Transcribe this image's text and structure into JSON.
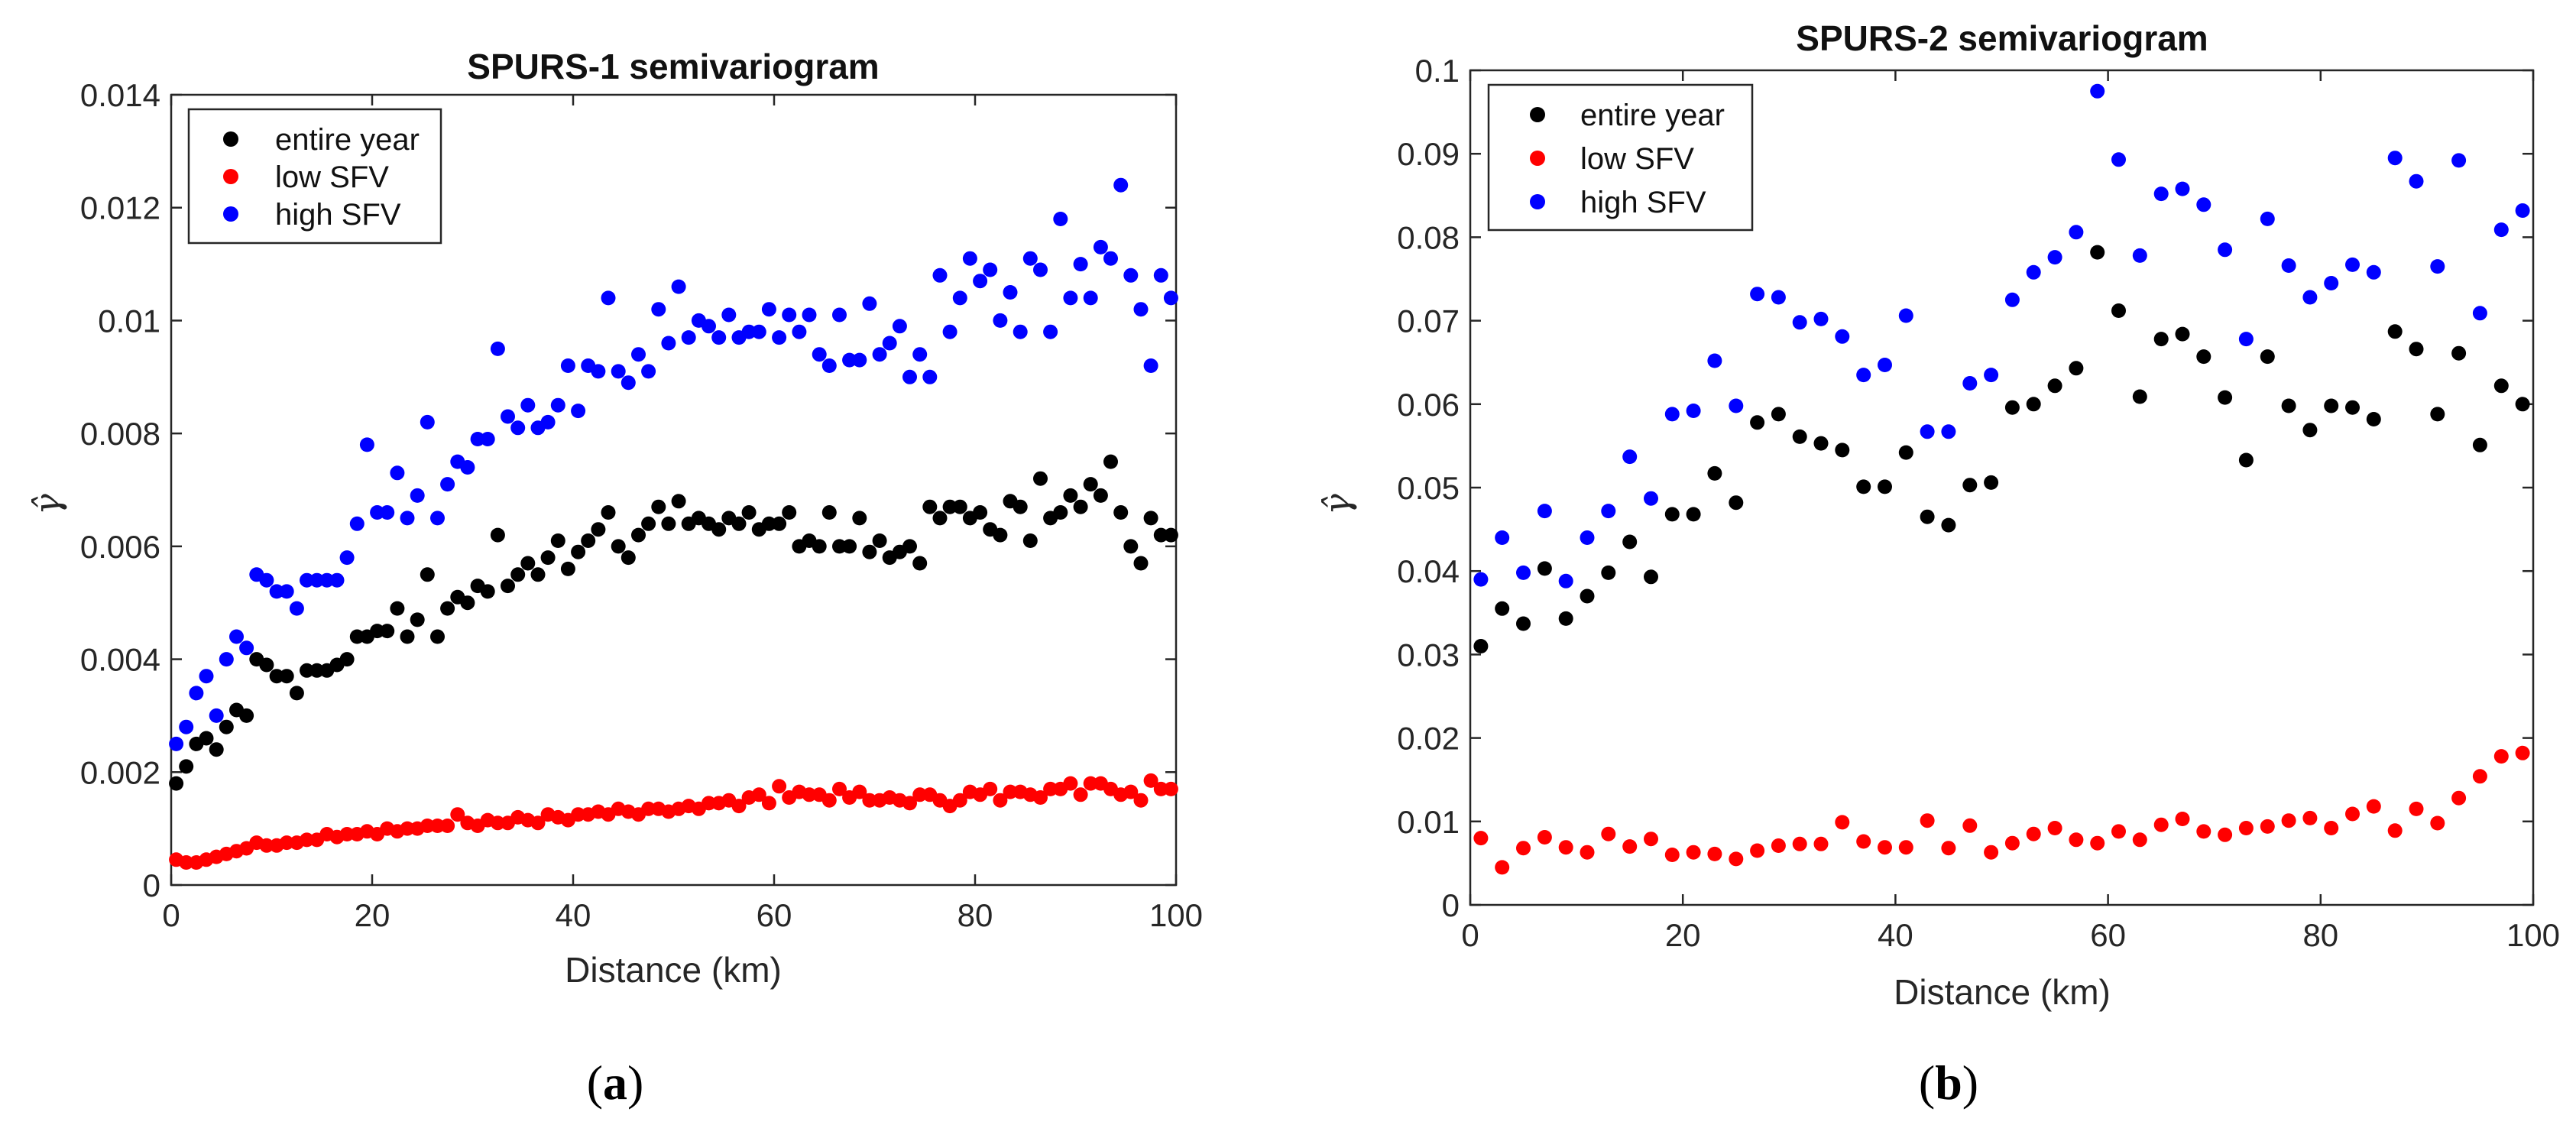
{
  "chart_data": [
    {
      "type": "scatter",
      "title": "SPURS-1 semivariogram",
      "xlabel": "Distance (km)",
      "ylabel": "γ̂",
      "xlim": [
        0,
        100
      ],
      "ylim": [
        0,
        0.014
      ],
      "xticks": [
        0,
        20,
        40,
        60,
        80,
        100
      ],
      "yticks": [
        0,
        0.002,
        0.004,
        0.006,
        0.008,
        0.01,
        0.012,
        0.014
      ],
      "ytick_labels": [
        "0",
        "0.002",
        "0.004",
        "0.006",
        "0.008",
        "0.01",
        "0.012",
        "0.014"
      ],
      "legend_position": "top-left",
      "panel_label": "a",
      "series": [
        {
          "name": "entire year",
          "color": "#000000",
          "x": [
            0.5,
            1.5,
            2.5,
            3.5,
            4.5,
            5.5,
            6.5,
            7.5,
            8.5,
            9.5,
            10.5,
            11.5,
            12.5,
            13.5,
            14.5,
            15.5,
            16.5,
            17.5,
            18.5,
            19.5,
            20.5,
            21.5,
            22.5,
            23.5,
            24.5,
            25.5,
            26.5,
            27.5,
            28.5,
            29.5,
            30.5,
            31.5,
            32.5,
            33.5,
            34.5,
            35.5,
            36.5,
            37.5,
            38.5,
            39.5,
            40.5,
            41.5,
            42.5,
            43.5,
            44.5,
            45.5,
            46.5,
            47.5,
            48.5,
            49.5,
            50.5,
            51.5,
            52.5,
            53.5,
            54.5,
            55.5,
            56.5,
            57.5,
            58.5,
            59.5,
            60.5,
            61.5,
            62.5,
            63.5,
            64.5,
            65.5,
            66.5,
            67.5,
            68.5,
            69.5,
            70.5,
            71.5,
            72.5,
            73.5,
            74.5,
            75.5,
            76.5,
            77.5,
            78.5,
            79.5,
            80.5,
            81.5,
            82.5,
            83.5,
            84.5,
            85.5,
            86.5,
            87.5,
            88.5,
            89.5,
            90.5,
            91.5,
            92.5,
            93.5,
            94.5,
            95.5,
            96.5,
            97.5,
            98.5,
            99.5
          ],
          "y": [
            0.0018,
            0.0021,
            0.0025,
            0.0026,
            0.0024,
            0.0028,
            0.0031,
            0.003,
            0.004,
            0.0039,
            0.0037,
            0.0037,
            0.0034,
            0.0038,
            0.0038,
            0.0038,
            0.0039,
            0.004,
            0.0044,
            0.0044,
            0.0045,
            0.0045,
            0.0049,
            0.0044,
            0.0047,
            0.0055,
            0.0044,
            0.0049,
            0.0051,
            0.005,
            0.0053,
            0.0052,
            0.0062,
            0.0053,
            0.0055,
            0.0057,
            0.0055,
            0.0058,
            0.0061,
            0.0056,
            0.0059,
            0.0061,
            0.0063,
            0.0066,
            0.006,
            0.0058,
            0.0062,
            0.0064,
            0.0067,
            0.0064,
            0.0068,
            0.0064,
            0.0065,
            0.0064,
            0.0063,
            0.0065,
            0.0064,
            0.0066,
            0.0063,
            0.0064,
            0.0064,
            0.0066,
            0.006,
            0.0061,
            0.006,
            0.0066,
            0.006,
            0.006,
            0.0065,
            0.0059,
            0.0061,
            0.0058,
            0.0059,
            0.006,
            0.0057,
            0.0067,
            0.0065,
            0.0067,
            0.0067,
            0.0065,
            0.0066,
            0.0063,
            0.0062,
            0.0068,
            0.0067,
            0.0061,
            0.0072,
            0.0065,
            0.0066,
            0.0069,
            0.0067,
            0.0071,
            0.0069,
            0.0075,
            0.0066,
            0.006,
            0.0057,
            0.0065,
            0.0062,
            0.0062
          ]
        },
        {
          "name": "low SFV",
          "color": "#ff0000",
          "x": [
            0.5,
            1.5,
            2.5,
            3.5,
            4.5,
            5.5,
            6.5,
            7.5,
            8.5,
            9.5,
            10.5,
            11.5,
            12.5,
            13.5,
            14.5,
            15.5,
            16.5,
            17.5,
            18.5,
            19.5,
            20.5,
            21.5,
            22.5,
            23.5,
            24.5,
            25.5,
            26.5,
            27.5,
            28.5,
            29.5,
            30.5,
            31.5,
            32.5,
            33.5,
            34.5,
            35.5,
            36.5,
            37.5,
            38.5,
            39.5,
            40.5,
            41.5,
            42.5,
            43.5,
            44.5,
            45.5,
            46.5,
            47.5,
            48.5,
            49.5,
            50.5,
            51.5,
            52.5,
            53.5,
            54.5,
            55.5,
            56.5,
            57.5,
            58.5,
            59.5,
            60.5,
            61.5,
            62.5,
            63.5,
            64.5,
            65.5,
            66.5,
            67.5,
            68.5,
            69.5,
            70.5,
            71.5,
            72.5,
            73.5,
            74.5,
            75.5,
            76.5,
            77.5,
            78.5,
            79.5,
            80.5,
            81.5,
            82.5,
            83.5,
            84.5,
            85.5,
            86.5,
            87.5,
            88.5,
            89.5,
            90.5,
            91.5,
            92.5,
            93.5,
            94.5,
            95.5,
            96.5,
            97.5,
            98.5,
            99.5
          ],
          "y": [
            0.00045,
            0.0004,
            0.0004,
            0.00045,
            0.0005,
            0.00055,
            0.0006,
            0.00065,
            0.00075,
            0.0007,
            0.0007,
            0.00075,
            0.00075,
            0.0008,
            0.0008,
            0.0009,
            0.00085,
            0.0009,
            0.0009,
            0.00095,
            0.0009,
            0.001,
            0.00095,
            0.001,
            0.001,
            0.00105,
            0.00105,
            0.00105,
            0.00125,
            0.0011,
            0.00105,
            0.00115,
            0.0011,
            0.0011,
            0.0012,
            0.00115,
            0.0011,
            0.00125,
            0.0012,
            0.00115,
            0.00125,
            0.00125,
            0.0013,
            0.00125,
            0.00135,
            0.0013,
            0.00125,
            0.00135,
            0.00135,
            0.0013,
            0.00135,
            0.0014,
            0.00135,
            0.00145,
            0.00145,
            0.0015,
            0.0014,
            0.00155,
            0.0016,
            0.00145,
            0.00175,
            0.00155,
            0.00165,
            0.0016,
            0.0016,
            0.0015,
            0.0017,
            0.00155,
            0.00165,
            0.0015,
            0.0015,
            0.00155,
            0.0015,
            0.00145,
            0.0016,
            0.0016,
            0.0015,
            0.0014,
            0.0015,
            0.00165,
            0.0016,
            0.0017,
            0.0015,
            0.00165,
            0.00165,
            0.0016,
            0.00155,
            0.0017,
            0.0017,
            0.0018,
            0.0016,
            0.0018,
            0.0018,
            0.0017,
            0.0016,
            0.00165,
            0.0015,
            0.00185,
            0.0017,
            0.0017
          ]
        },
        {
          "name": "high SFV",
          "color": "#0000ff",
          "x": [
            0.5,
            1.5,
            2.5,
            3.5,
            4.5,
            5.5,
            6.5,
            7.5,
            8.5,
            9.5,
            10.5,
            11.5,
            12.5,
            13.5,
            14.5,
            15.5,
            16.5,
            17.5,
            18.5,
            19.5,
            20.5,
            21.5,
            22.5,
            23.5,
            24.5,
            25.5,
            26.5,
            27.5,
            28.5,
            29.5,
            30.5,
            31.5,
            32.5,
            33.5,
            34.5,
            35.5,
            36.5,
            37.5,
            38.5,
            39.5,
            40.5,
            41.5,
            42.5,
            43.5,
            44.5,
            45.5,
            46.5,
            47.5,
            48.5,
            49.5,
            50.5,
            51.5,
            52.5,
            53.5,
            54.5,
            55.5,
            56.5,
            57.5,
            58.5,
            59.5,
            60.5,
            61.5,
            62.5,
            63.5,
            64.5,
            65.5,
            66.5,
            67.5,
            68.5,
            69.5,
            70.5,
            71.5,
            72.5,
            73.5,
            74.5,
            75.5,
            76.5,
            77.5,
            78.5,
            79.5,
            80.5,
            81.5,
            82.5,
            83.5,
            84.5,
            85.5,
            86.5,
            87.5,
            88.5,
            89.5,
            90.5,
            91.5,
            92.5,
            93.5,
            94.5,
            95.5,
            96.5,
            97.5,
            98.5,
            99.5
          ],
          "y": [
            0.0025,
            0.0028,
            0.0034,
            0.0037,
            0.003,
            0.004,
            0.0044,
            0.0042,
            0.0055,
            0.0054,
            0.0052,
            0.0052,
            0.0049,
            0.0054,
            0.0054,
            0.0054,
            0.0054,
            0.0058,
            0.0064,
            0.0078,
            0.0066,
            0.0066,
            0.0073,
            0.0065,
            0.0069,
            0.0082,
            0.0065,
            0.0071,
            0.0075,
            0.0074,
            0.0079,
            0.0079,
            0.0095,
            0.0083,
            0.0081,
            0.0085,
            0.0081,
            0.0082,
            0.0085,
            0.0092,
            0.0084,
            0.0092,
            0.0091,
            0.0104,
            0.0091,
            0.0089,
            0.0094,
            0.0091,
            0.0102,
            0.0096,
            0.0106,
            0.0097,
            0.01,
            0.0099,
            0.0097,
            0.0101,
            0.0097,
            0.0098,
            0.0098,
            0.0102,
            0.0097,
            0.0101,
            0.0098,
            0.0101,
            0.0094,
            0.0092,
            0.0101,
            0.0093,
            0.0093,
            0.0103,
            0.0094,
            0.0096,
            0.0099,
            0.009,
            0.0094,
            0.009,
            0.0108,
            0.0098,
            0.0104,
            0.0111,
            0.0107,
            0.0109,
            0.01,
            0.0105,
            0.0098,
            0.0111,
            0.0109,
            0.0098,
            0.0118,
            0.0104,
            0.011,
            0.0104,
            0.0113,
            0.0111,
            0.0124,
            0.0108,
            0.0102,
            0.0092,
            0.0108,
            0.0104
          ]
        }
      ]
    },
    {
      "type": "scatter",
      "title": "SPURS-2 semivariogram",
      "xlabel": "Distance (km)",
      "ylabel": "γ̂",
      "xlim": [
        0,
        100
      ],
      "ylim": [
        0,
        0.1
      ],
      "xticks": [
        0,
        20,
        40,
        60,
        80,
        100
      ],
      "yticks": [
        0,
        0.01,
        0.02,
        0.03,
        0.04,
        0.05,
        0.06,
        0.07,
        0.08,
        0.09,
        0.1
      ],
      "ytick_labels": [
        "0",
        "0.01",
        "0.02",
        "0.03",
        "0.04",
        "0.05",
        "0.06",
        "0.07",
        "0.08",
        "0.09",
        "0.1"
      ],
      "legend_position": "top-left",
      "panel_label": "b",
      "series": [
        {
          "name": "entire year",
          "color": "#000000",
          "x": [
            1,
            3,
            5,
            7,
            9,
            11,
            13,
            15,
            17,
            19,
            21,
            23,
            25,
            27,
            29,
            31,
            33,
            35,
            37,
            39,
            41,
            43,
            45,
            47,
            49,
            51,
            53,
            55,
            57,
            59,
            61,
            63,
            65,
            67,
            69,
            71,
            73,
            75,
            77,
            79,
            81,
            83,
            85,
            87,
            89,
            91,
            93,
            95,
            97,
            99
          ],
          "y": [
            0.031,
            0.0355,
            0.0337,
            0.0403,
            0.0343,
            0.037,
            0.0398,
            0.0435,
            0.0393,
            0.0468,
            0.0468,
            0.0517,
            0.0482,
            0.0578,
            0.0588,
            0.0561,
            0.0553,
            0.0545,
            0.0501,
            0.0501,
            0.0542,
            0.0465,
            0.0455,
            0.0503,
            0.0506,
            0.0596,
            0.06,
            0.0622,
            0.0643,
            0.0782,
            0.0712,
            0.0609,
            0.0678,
            0.0684,
            0.0657,
            0.0608,
            0.0533,
            0.0657,
            0.0598,
            0.0569,
            0.0598,
            0.0596,
            0.0582,
            0.0687,
            0.0666,
            0.0588,
            0.0661,
            0.0551,
            0.0622,
            0.06
          ]
        },
        {
          "name": "low SFV",
          "color": "#ff0000",
          "x": [
            1,
            3,
            5,
            7,
            9,
            11,
            13,
            15,
            17,
            19,
            21,
            23,
            25,
            27,
            29,
            31,
            33,
            35,
            37,
            39,
            41,
            43,
            45,
            47,
            49,
            51,
            53,
            55,
            57,
            59,
            61,
            63,
            65,
            67,
            69,
            71,
            73,
            75,
            77,
            79,
            81,
            83,
            85,
            87,
            89,
            91,
            93,
            95,
            97,
            99
          ],
          "y": [
            0.008,
            0.0045,
            0.0068,
            0.0081,
            0.0069,
            0.0063,
            0.0085,
            0.007,
            0.0079,
            0.006,
            0.0063,
            0.0061,
            0.0055,
            0.0065,
            0.0071,
            0.0073,
            0.0073,
            0.0099,
            0.0076,
            0.0069,
            0.0069,
            0.0101,
            0.0068,
            0.0095,
            0.0063,
            0.0074,
            0.0085,
            0.0092,
            0.0078,
            0.0074,
            0.0088,
            0.0078,
            0.0096,
            0.0103,
            0.0088,
            0.0084,
            0.0092,
            0.0094,
            0.0101,
            0.0104,
            0.0092,
            0.0109,
            0.0118,
            0.0089,
            0.0115,
            0.0098,
            0.0128,
            0.0154,
            0.0178,
            0.0182
          ]
        },
        {
          "name": "high SFV",
          "color": "#0000ff",
          "x": [
            1,
            3,
            5,
            7,
            9,
            11,
            13,
            15,
            17,
            19,
            21,
            23,
            25,
            27,
            29,
            31,
            33,
            35,
            37,
            39,
            41,
            43,
            45,
            47,
            49,
            51,
            53,
            55,
            57,
            59,
            61,
            63,
            65,
            67,
            69,
            71,
            73,
            75,
            77,
            79,
            81,
            83,
            85,
            87,
            89,
            91,
            93,
            95,
            97,
            99
          ],
          "y": [
            0.039,
            0.044,
            0.0398,
            0.0472,
            0.0388,
            0.044,
            0.0472,
            0.0537,
            0.0487,
            0.0588,
            0.0592,
            0.0652,
            0.0598,
            0.0732,
            0.0728,
            0.0698,
            0.0702,
            0.0681,
            0.0635,
            0.0647,
            0.0706,
            0.0567,
            0.0567,
            0.0625,
            0.0635,
            0.0725,
            0.0758,
            0.0776,
            0.0806,
            0.0975,
            0.0893,
            0.0778,
            0.0852,
            0.0858,
            0.0839,
            0.0785,
            0.0678,
            0.0822,
            0.0766,
            0.0728,
            0.0745,
            0.0767,
            0.0758,
            0.0895,
            0.0867,
            0.0765,
            0.0892,
            0.0709,
            0.0809,
            0.0832
          ]
        }
      ]
    }
  ]
}
